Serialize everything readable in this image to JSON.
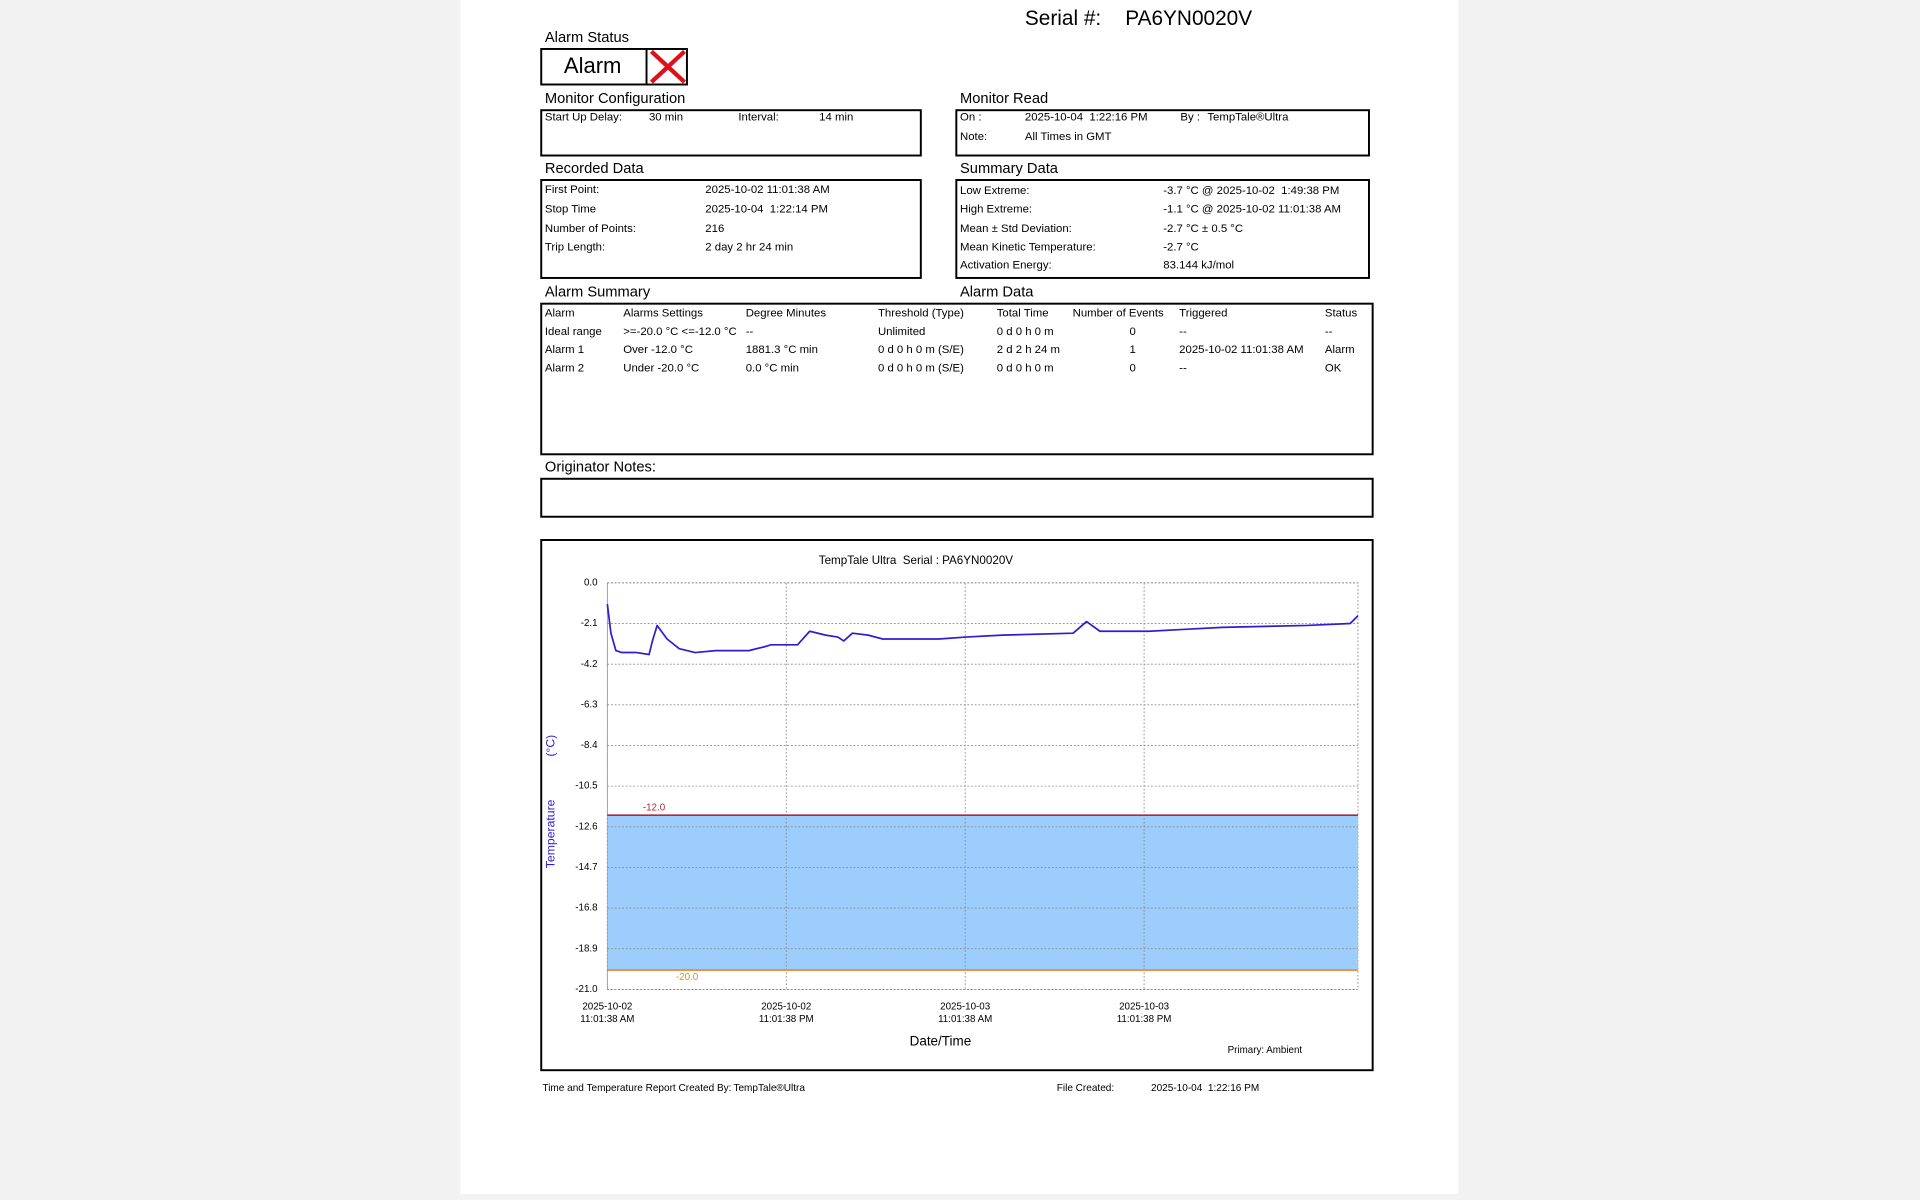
{
  "header": {
    "serial_label": "Serial #:",
    "serial": "PA6YN0020V"
  },
  "alarm_status": {
    "title": "Alarm Status",
    "value": "Alarm"
  },
  "monitor_configuration": {
    "title": "Monitor Configuration",
    "fields": [
      {
        "label": "Start Up Delay:",
        "value": "30 min"
      },
      {
        "label": "Interval:",
        "value": "14 min"
      }
    ]
  },
  "monitor_read": {
    "title": "Monitor Read",
    "fields": [
      {
        "label": "On :",
        "value": "2025-10-04  1:22:16 PM"
      },
      {
        "label": "By :",
        "value": "TempTale®Ultra"
      },
      {
        "label": "Note:",
        "value": "All Times in GMT"
      }
    ]
  },
  "recorded_data": {
    "title": "Recorded Data",
    "fields": [
      {
        "label": "First Point:",
        "value": "2025-10-02 11:01:38 AM"
      },
      {
        "label": "Stop Time",
        "value": "2025-10-04  1:22:14 PM"
      },
      {
        "label": "Number of Points:",
        "value": "216"
      },
      {
        "label": "Trip Length:",
        "value": "2 day 2 hr 24 min"
      }
    ]
  },
  "summary_data": {
    "title": "Summary Data",
    "fields": [
      {
        "label": "Low Extreme:",
        "value": "-3.7 °C @ 2025-10-02  1:49:38 PM"
      },
      {
        "label": "High Extreme:",
        "value": "-1.1 °C @ 2025-10-02 11:01:38 AM"
      },
      {
        "label": "Mean ± Std Deviation:",
        "value": "-2.7 °C ± 0.5 °C"
      },
      {
        "label": "Mean Kinetic Temperature:",
        "value": "-2.7 °C"
      },
      {
        "label": "Activation Energy:",
        "value": "83.144 kJ/mol"
      }
    ]
  },
  "alarm_summary": {
    "title": "Alarm Summary",
    "data_title": "Alarm Data",
    "columns": [
      "Alarm",
      "Alarms Settings",
      "Degree Minutes",
      "Threshold (Type)",
      "Total Time",
      "Number of Events",
      "Triggered",
      "Status"
    ],
    "rows": [
      [
        "Ideal range",
        ">=-20.0 °C <=-12.0 °C",
        "--",
        "Unlimited",
        "0 d 0 h 0 m",
        "0",
        "--",
        "--"
      ],
      [
        "Alarm 1",
        "Over -12.0 °C",
        "1881.3 °C min",
        "0 d 0 h 0 m (S/E)",
        "2 d 2 h 24 m",
        "1",
        "2025-10-02 11:01:38 AM",
        "Alarm"
      ],
      [
        "Alarm 2",
        "Under -20.0 °C",
        "0.0 °C min",
        "0 d 0 h 0 m (S/E)",
        "0 d 0 h 0 m",
        "0",
        "--",
        "OK"
      ]
    ]
  },
  "originator_notes": {
    "title": "Originator Notes:"
  },
  "footer": {
    "created_by_label": "Time and Temperature Report Created By:",
    "created_by": "TempTale®Ultra",
    "file_created_label": "File Created:",
    "file_created": "2025-10-04  1:22:16 PM"
  },
  "chart_data": {
    "type": "line",
    "title": "TempTale Ultra  Serial : PA6YN0020V",
    "x_label": "Date/Time",
    "y_label": "Temperature",
    "y_unit": "(°C)",
    "x": [
      "2025-10-02T11:01:38Z",
      "2025-10-02T11:16Z",
      "2025-10-02T11:36Z",
      "2025-10-02T12:00Z",
      "2025-10-02T12:59Z",
      "2025-10-02T13:49:38Z",
      "2025-10-02T14:03Z",
      "2025-10-02T14:22Z",
      "2025-10-02T15:02Z",
      "2025-10-02T15:51Z",
      "2025-10-02T16:55Z",
      "2025-10-02T18:18Z",
      "2025-10-02T20:31Z",
      "2025-10-02T21:35Z",
      "2025-10-02T22:00Z",
      "2025-10-02T23:47Z",
      "2025-10-03T00:36Z",
      "2025-10-03T01:40Z",
      "2025-10-03T02:29Z",
      "2025-10-03T02:53Z",
      "2025-10-03T03:28Z",
      "2025-10-03T04:31Z",
      "2025-10-03T05:30Z",
      "2025-10-03T09:16Z",
      "2025-10-03T11:04Z",
      "2025-10-03T13:31Z",
      "2025-10-03T18:16Z",
      "2025-10-03T19:10Z",
      "2025-10-03T20:04Z",
      "2025-10-03T23:21Z",
      "2025-10-04T01:48Z",
      "2025-10-04T04:15Z",
      "2025-10-04T09:58Z",
      "2025-10-04T12:51Z",
      "2025-10-04T13:22:14Z"
    ],
    "series": [
      {
        "name": "Primary: Ambient",
        "color": "#2b1fd0",
        "values": [
          -1.1,
          -2.6,
          -3.5,
          -3.6,
          -3.6,
          -3.7,
          -3.0,
          -2.2,
          -2.9,
          -3.4,
          -3.6,
          -3.5,
          -3.5,
          -3.3,
          -3.2,
          -3.2,
          -2.5,
          -2.7,
          -2.8,
          -3.0,
          -2.6,
          -2.7,
          -2.9,
          -2.9,
          -2.8,
          -2.7,
          -2.6,
          -2.0,
          -2.5,
          -2.5,
          -2.4,
          -2.3,
          -2.2,
          -2.1,
          -1.7
        ]
      }
    ],
    "xlim": [
      "2025-10-02T11:01:38Z",
      "2025-10-04T13:22:14Z"
    ],
    "xticks": [
      {
        "value": "2025-10-02T11:01:38Z",
        "label": "2025-10-02\n11:01:38 AM"
      },
      {
        "value": "2025-10-02T23:01:38Z",
        "label": "2025-10-02\n11:01:38 PM"
      },
      {
        "value": "2025-10-03T11:01:38Z",
        "label": "2025-10-03\n11:01:38 AM"
      },
      {
        "value": "2025-10-03T23:01:38Z",
        "label": "2025-10-03\n11:01:38 PM"
      }
    ],
    "ylim": [
      -21.0,
      0.0
    ],
    "yticks": [
      {
        "value": 0.0,
        "label": "0.0"
      },
      -2.1,
      -4.2,
      -6.3,
      -8.4,
      -10.5,
      -12.6,
      -14.7,
      -16.8,
      -18.9,
      {
        "value": -21.0,
        "label": "-21.0"
      }
    ],
    "grid": true,
    "ideal_band_color": "#9ccdfc",
    "alarm_limits": [
      {
        "value": -12.0,
        "label": "-12.0",
        "color": "#b0263a"
      },
      {
        "value": -20.0,
        "label": "-20.0",
        "color": "#e8862a"
      }
    ]
  }
}
